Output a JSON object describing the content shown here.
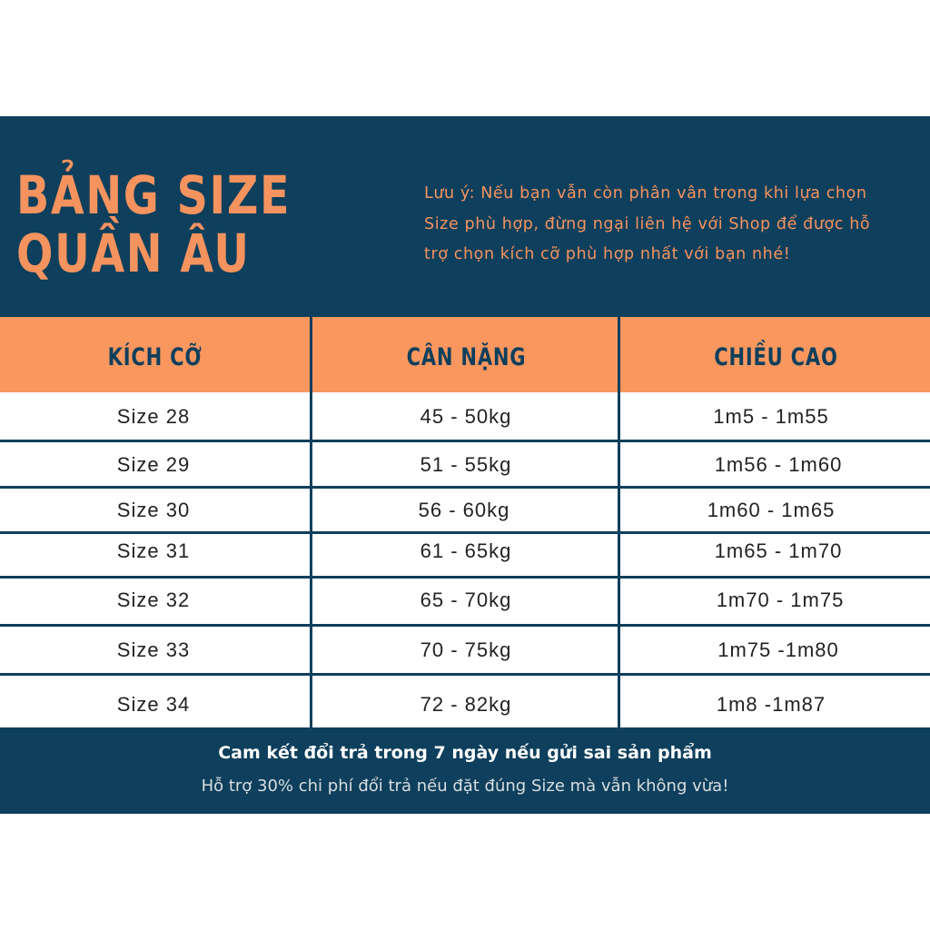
{
  "header": {
    "title_line1": "BẢNG SIZE",
    "title_line2": "QUẦN ÂU",
    "note_lines": [
      "Lưu ý: Nếu bạn vẫn còn phân vân trong khi lựa chọn",
      "Size phù hợp, đừng ngại liên hệ với Shop để được hỗ",
      "trợ chọn kích cỡ phù hợp nhất với bạn nhé!"
    ]
  },
  "table": {
    "columns": [
      "KÍCH CỠ",
      "CÂN NẶNG",
      "CHIỀU CAO"
    ],
    "rows": [
      [
        "Size 28",
        "45 - 50kg",
        "1m5 - 1m55"
      ],
      [
        "Size 29",
        "51 - 55kg",
        "1m56 - 1m60"
      ],
      [
        "Size 30",
        "56 - 60kg",
        "1m60 - 1m65"
      ],
      [
        "Size 31",
        "61 - 65kg",
        "1m65 - 1m70"
      ],
      [
        "Size 32",
        "65 - 70kg",
        "1m70 - 1m75"
      ],
      [
        "Size 33",
        "70 - 75kg",
        "1m75 -1m80"
      ],
      [
        "Size 34",
        "72 - 82kg",
        "1m8 -1m87"
      ]
    ]
  },
  "footer": {
    "line1": "Cam kết đổi trả trong 7 ngày nếu gửi sai sản phẩm",
    "line2": "Hỗ trợ 30% chi phí đổi trả nếu đặt đúng Size mà vẫn không vừa!"
  },
  "colors": {
    "navy": "#0e3f5c",
    "orange": "#f9975f"
  }
}
